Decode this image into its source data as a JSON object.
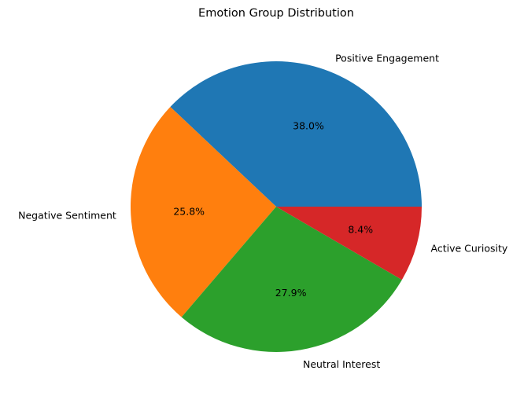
{
  "chart_data": {
    "type": "pie",
    "title": "Emotion Group Distribution",
    "slices": [
      {
        "label": "Positive Engagement",
        "value": 38.0,
        "pct_label": "38.0%",
        "color": "#1f77b4"
      },
      {
        "label": "Negative Sentiment",
        "value": 25.8,
        "pct_label": "25.8%",
        "color": "#ff7f0e"
      },
      {
        "label": "Neutral Interest",
        "value": 27.9,
        "pct_label": "27.9%",
        "color": "#2ca02c"
      },
      {
        "label": "Active Curiosity",
        "value": 8.4,
        "pct_label": "8.4%",
        "color": "#d62728"
      }
    ],
    "start_angle_deg": 0,
    "direction": "counterclockwise",
    "legend": false
  }
}
